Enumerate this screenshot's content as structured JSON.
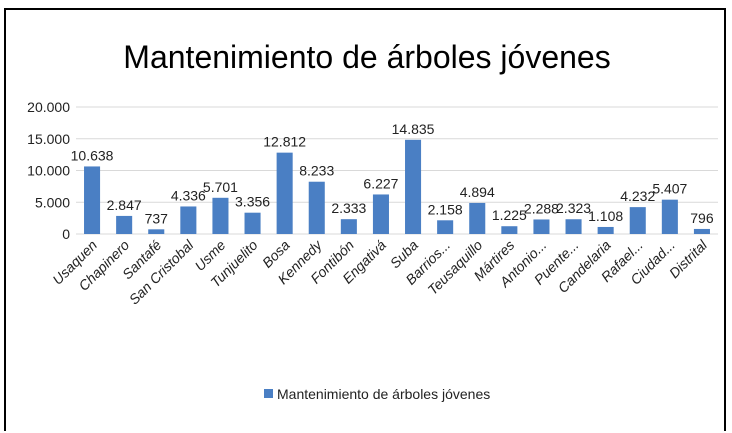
{
  "chart_data": {
    "type": "bar",
    "title": "Mantenimiento de árboles jóvenes",
    "categories": [
      "Usaquen",
      "Chapinero",
      "Santafé",
      "San Cristobal",
      "Usme",
      "Tunjuelito",
      "Bosa",
      "Kennedy",
      "Fontibón",
      "Engativá",
      "Suba",
      "Barrios...",
      "Teusaquillo",
      "Mártires",
      "Antonio...",
      "Puente...",
      "Candelaria",
      "Rafael...",
      "Ciudad...",
      "Distrital"
    ],
    "series": [
      {
        "name": "Mantenimiento de árboles jóvenes",
        "values": [
          10638,
          2847,
          737,
          4336,
          5701,
          3356,
          12812,
          8233,
          2333,
          6227,
          14835,
          2158,
          4894,
          1225,
          2288,
          2323,
          1108,
          4232,
          5407,
          796
        ],
        "labels": [
          "10.638",
          "2.847",
          "737",
          "4.336",
          "5.701",
          "3.356",
          "12.812",
          "8.233",
          "2.333",
          "6.227",
          "14.835",
          "2.158",
          "4.894",
          "1.225",
          "2.288",
          "2.323",
          "1.108",
          "4.232",
          "5.407",
          "796"
        ]
      }
    ],
    "yticks": [
      0,
      5000,
      10000,
      15000,
      20000
    ],
    "ytick_labels": [
      "0",
      "5.000",
      "10.000",
      "15.000",
      "20.000"
    ],
    "ylim": [
      0,
      20000
    ],
    "grid": true,
    "legend": "bottom",
    "bar_color": "#4a7fc4"
  }
}
